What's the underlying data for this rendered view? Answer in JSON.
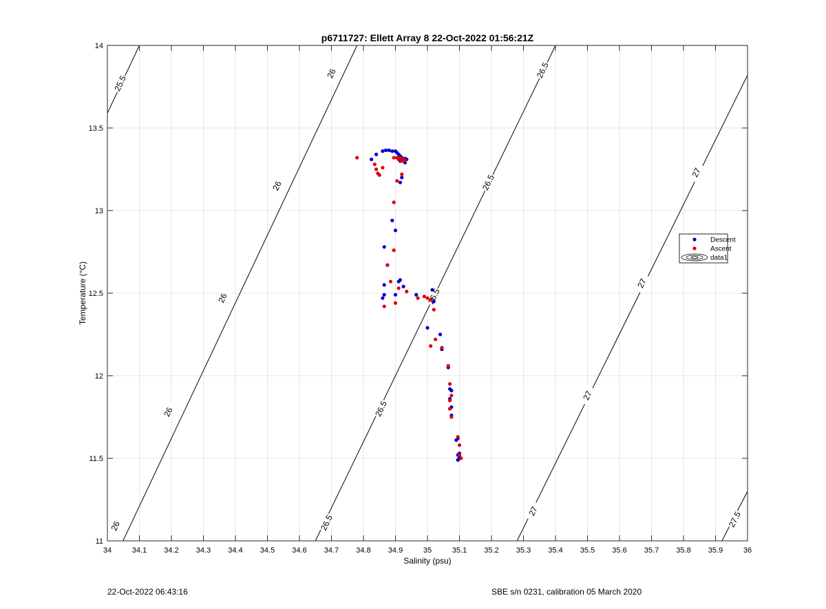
{
  "chart_data": {
    "type": "scatter",
    "title": "p6711727: Ellett Array 8 22-Oct-2022 01:56:21Z",
    "xlabel": "Salinity (psu)",
    "ylabel": "Temperature (°C)",
    "xlim": [
      34,
      36
    ],
    "ylim": [
      11,
      14
    ],
    "xticks": [
      34,
      34.1,
      34.2,
      34.3,
      34.4,
      34.5,
      34.6,
      34.7,
      34.8,
      34.9,
      35,
      35.1,
      35.2,
      35.3,
      35.4,
      35.5,
      35.6,
      35.7,
      35.8,
      35.9,
      36
    ],
    "xtick_labels": [
      "34",
      "34.1",
      "34.2",
      "34.3",
      "34.4",
      "34.5",
      "34.6",
      "34.7",
      "34.8",
      "34.9",
      "35",
      "35.1",
      "35.2",
      "35.3",
      "35.4",
      "35.5",
      "35.6",
      "35.7",
      "35.8",
      "35.9",
      "36"
    ],
    "yticks": [
      11,
      11.5,
      12,
      12.5,
      13,
      13.5,
      14
    ],
    "ytick_labels": [
      "11",
      "11.5",
      "12",
      "12.5",
      "13",
      "13.5",
      "14"
    ],
    "grid": true,
    "legend_placement": "right",
    "series": [
      {
        "name": "Descent",
        "color": "#0000cc",
        "marker": "dot",
        "points": [
          [
            34.825,
            13.31
          ],
          [
            34.84,
            13.34
          ],
          [
            34.86,
            13.36
          ],
          [
            34.87,
            13.365
          ],
          [
            34.88,
            13.365
          ],
          [
            34.89,
            13.36
          ],
          [
            34.9,
            13.36
          ],
          [
            34.905,
            13.35
          ],
          [
            34.91,
            13.34
          ],
          [
            34.915,
            13.33
          ],
          [
            34.92,
            13.32
          ],
          [
            34.925,
            13.31
          ],
          [
            34.93,
            13.315
          ],
          [
            34.935,
            13.31
          ],
          [
            34.93,
            13.29
          ],
          [
            34.915,
            13.3
          ],
          [
            34.92,
            13.2
          ],
          [
            34.915,
            13.17
          ],
          [
            34.89,
            12.94
          ],
          [
            34.9,
            12.88
          ],
          [
            34.865,
            12.78
          ],
          [
            34.875,
            12.67
          ],
          [
            34.91,
            12.57
          ],
          [
            34.915,
            12.58
          ],
          [
            34.865,
            12.55
          ],
          [
            34.865,
            12.49
          ],
          [
            34.86,
            12.47
          ],
          [
            34.9,
            12.49
          ],
          [
            34.925,
            12.54
          ],
          [
            34.965,
            12.49
          ],
          [
            35.015,
            12.52
          ],
          [
            35.02,
            12.45
          ],
          [
            35,
            12.29
          ],
          [
            35.04,
            12.25
          ],
          [
            35.045,
            12.16
          ],
          [
            35.065,
            12.05
          ],
          [
            35.07,
            11.92
          ],
          [
            35.075,
            11.91
          ],
          [
            35.07,
            11.86
          ],
          [
            35.075,
            11.81
          ],
          [
            35.07,
            11.8
          ],
          [
            35.075,
            11.76
          ],
          [
            35.09,
            11.61
          ],
          [
            35.095,
            11.62
          ],
          [
            35.1,
            11.53
          ],
          [
            35.095,
            11.52
          ],
          [
            35.1,
            11.51
          ],
          [
            35.095,
            11.49
          ],
          [
            35.1,
            11.5
          ]
        ]
      },
      {
        "name": "Ascent",
        "color": "#e00000",
        "marker": "dot",
        "points": [
          [
            34.78,
            13.32
          ],
          [
            34.835,
            13.28
          ],
          [
            34.84,
            13.25
          ],
          [
            34.845,
            13.225
          ],
          [
            34.85,
            13.215
          ],
          [
            34.86,
            13.26
          ],
          [
            34.895,
            13.32
          ],
          [
            34.905,
            13.32
          ],
          [
            34.91,
            13.31
          ],
          [
            34.915,
            13.32
          ],
          [
            34.92,
            13.3
          ],
          [
            34.925,
            13.31
          ],
          [
            34.93,
            13.305
          ],
          [
            34.905,
            13.18
          ],
          [
            34.92,
            13.22
          ],
          [
            34.895,
            13.05
          ],
          [
            34.895,
            12.76
          ],
          [
            34.875,
            12.67
          ],
          [
            34.885,
            12.57
          ],
          [
            34.91,
            12.53
          ],
          [
            34.865,
            12.42
          ],
          [
            34.9,
            12.44
          ],
          [
            34.935,
            12.51
          ],
          [
            34.97,
            12.47
          ],
          [
            34.99,
            12.48
          ],
          [
            35,
            12.47
          ],
          [
            35.01,
            12.46
          ],
          [
            35.02,
            12.4
          ],
          [
            35.025,
            12.22
          ],
          [
            35.01,
            12.18
          ],
          [
            35.045,
            12.17
          ],
          [
            35.065,
            12.06
          ],
          [
            35.07,
            11.95
          ],
          [
            35.075,
            11.88
          ],
          [
            35.07,
            11.85
          ],
          [
            35.07,
            11.8
          ],
          [
            35.075,
            11.75
          ],
          [
            35.095,
            11.63
          ],
          [
            35.1,
            11.58
          ],
          [
            35.1,
            11.52
          ],
          [
            35.105,
            11.5
          ]
        ]
      },
      {
        "name": "data1",
        "color": "#000000",
        "marker": "contour",
        "contour_lines": [
          {
            "label": "25.5",
            "points": [
              [
                34,
                13.59
              ],
              [
                34.1,
                14
              ]
            ],
            "label_at": [
              34.04,
              13.77
            ]
          },
          {
            "label": "26",
            "points": [
              [
                34,
                10.8
              ],
              [
                34.78,
                14
              ]
            ],
            "label_at": [
              34.025,
              11.09
            ]
          },
          {
            "label": "26",
            "points": [
              [
                34,
                10.8
              ],
              [
                34.78,
                14
              ]
            ],
            "label_at": [
              34.19,
              11.78
            ]
          },
          {
            "label": "26",
            "points": [
              [
                34,
                10.8
              ],
              [
                34.78,
                14
              ]
            ],
            "label_at": [
              34.36,
              12.47
            ]
          },
          {
            "label": "26",
            "points": [
              [
                34,
                10.8
              ],
              [
                34.78,
                14
              ]
            ],
            "label_at": [
              34.53,
              13.15
            ]
          },
          {
            "label": "26",
            "points": [
              [
                34,
                10.8
              ],
              [
                34.78,
                14
              ]
            ],
            "label_at": [
              34.7,
              13.83
            ]
          },
          {
            "label": "26.5",
            "points": [
              [
                34.65,
                11
              ],
              [
                35.4,
                14
              ]
            ],
            "label_at": [
              34.685,
              11.11
            ]
          },
          {
            "label": "26.5",
            "points": [
              [
                34.65,
                11
              ],
              [
                35.4,
                14
              ]
            ],
            "label_at": [
              34.855,
              11.8
            ]
          },
          {
            "label": "26.5",
            "points": [
              [
                34.65,
                11
              ],
              [
                35.4,
                14
              ]
            ],
            "label_at": [
              35.02,
              12.48
            ]
          },
          {
            "label": "26.5",
            "points": [
              [
                34.65,
                11
              ],
              [
                35.4,
                14
              ]
            ],
            "label_at": [
              35.19,
              13.17
            ]
          },
          {
            "label": "26.5",
            "points": [
              [
                34.65,
                11
              ],
              [
                35.4,
                14
              ]
            ],
            "label_at": [
              35.36,
              13.85
            ]
          },
          {
            "label": "27",
            "points": [
              [
                35.28,
                11
              ],
              [
                36,
                13.82
              ]
            ],
            "label_at": [
              35.33,
              11.18
            ]
          },
          {
            "label": "27",
            "points": [
              [
                35.28,
                11
              ],
              [
                36,
                13.82
              ]
            ],
            "label_at": [
              35.5,
              11.88
            ]
          },
          {
            "label": "27",
            "points": [
              [
                35.28,
                11
              ],
              [
                36,
                13.82
              ]
            ],
            "label_at": [
              35.67,
              12.56
            ]
          },
          {
            "label": "27",
            "points": [
              [
                35.28,
                11
              ],
              [
                36,
                13.82
              ]
            ],
            "label_at": [
              35.84,
              13.23
            ]
          },
          {
            "label": "27.5",
            "points": [
              [
                35.92,
                11
              ],
              [
                36,
                11.3
              ]
            ],
            "label_at": [
              35.96,
              11.13
            ]
          }
        ]
      }
    ]
  },
  "legend": {
    "items": [
      {
        "label": "Descent",
        "color": "#0000cc"
      },
      {
        "label": "Ascent",
        "color": "#e00000"
      },
      {
        "label": "data1",
        "color": "#000000"
      }
    ]
  },
  "footer": {
    "timestamp": "22-Oct-2022 06:43:16",
    "calibration": "SBE s/n 0231, calibration 05 March 2020"
  }
}
